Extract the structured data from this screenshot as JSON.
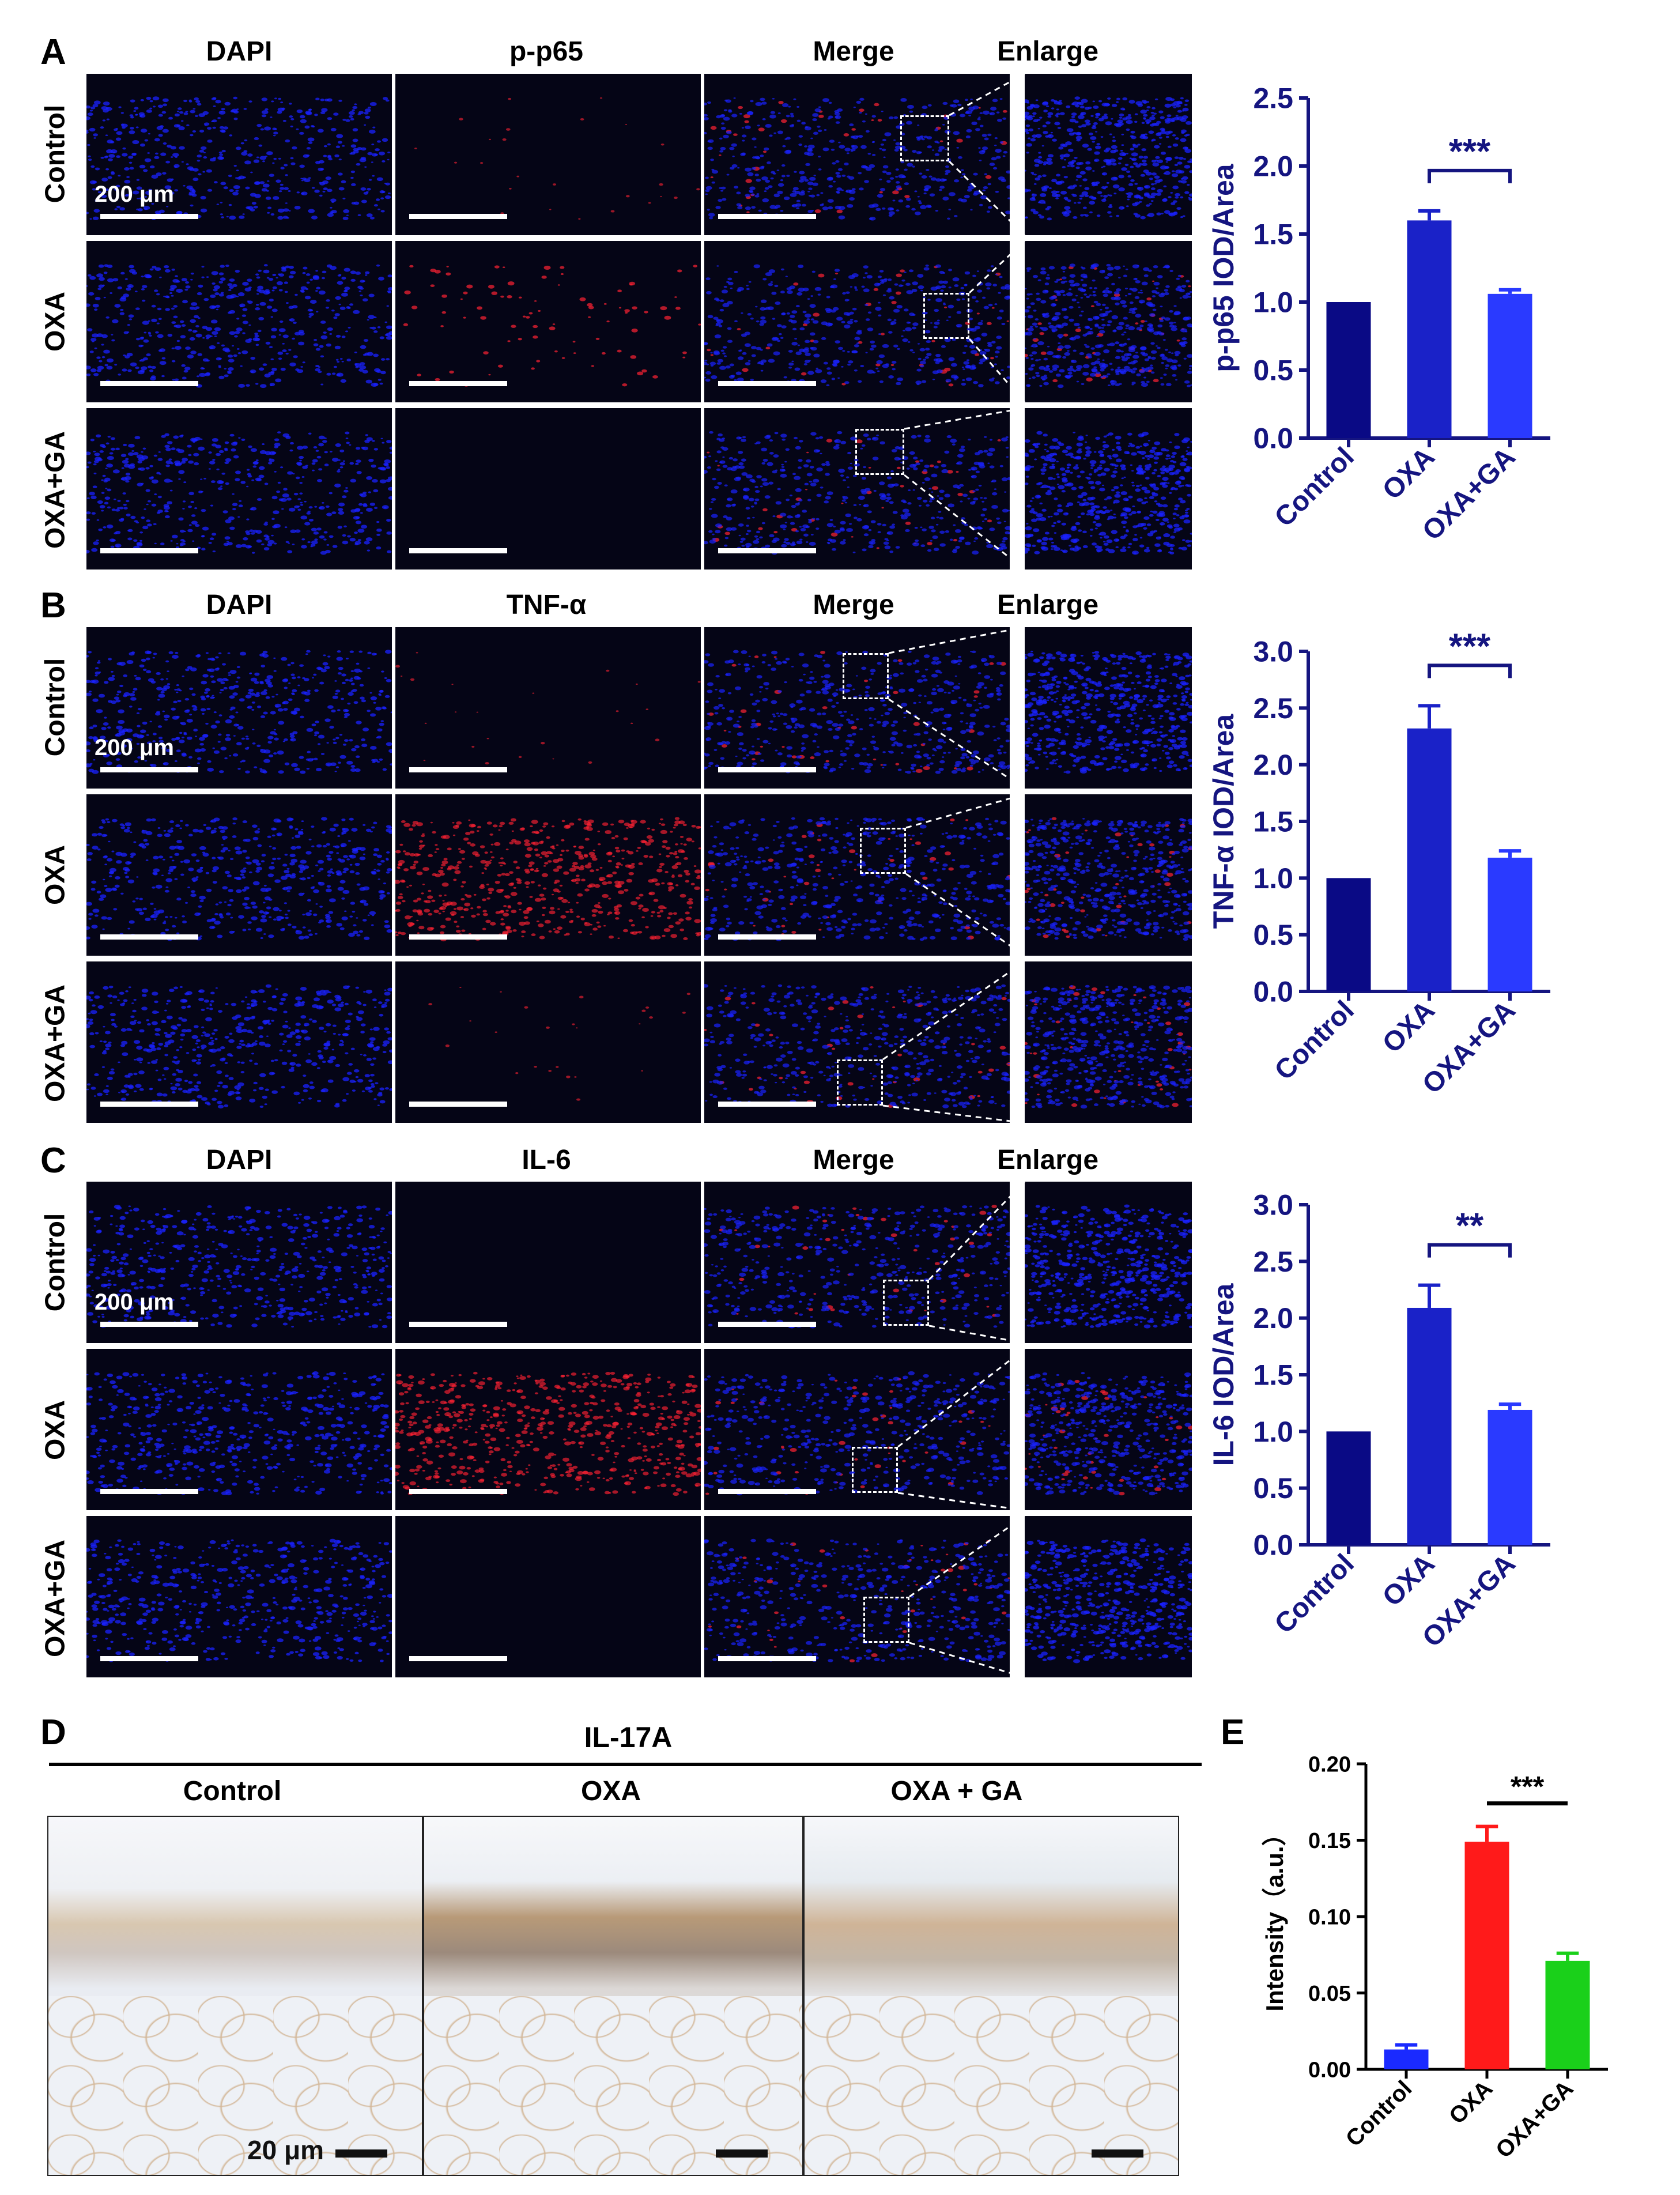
{
  "panels": {
    "A": {
      "letter": "A",
      "columns": [
        "DAPI",
        "p-p65",
        "Merge",
        "Enlarge"
      ],
      "rows": [
        "Control",
        "OXA",
        "OXA+GA"
      ],
      "scale_label": "200 μm"
    },
    "B": {
      "letter": "B",
      "columns": [
        "DAPI",
        "TNF-α",
        "Merge",
        "Enlarge"
      ],
      "rows": [
        "Control",
        "OXA",
        "OXA+GA"
      ],
      "scale_label": "200 μm"
    },
    "C": {
      "letter": "C",
      "columns": [
        "DAPI",
        "IL-6",
        "Merge",
        "Enlarge"
      ],
      "rows": [
        "Control",
        "OXA",
        "OXA+GA"
      ],
      "scale_label": "200 μm"
    },
    "D": {
      "letter": "D",
      "title": "IL-17A",
      "columns": [
        "Control",
        "OXA",
        "OXA + GA"
      ],
      "scale_label": "20 μm"
    },
    "E": {
      "letter": "E"
    }
  },
  "colors": {
    "dapi": "#1a22ff",
    "marker": "#ff2233",
    "axis_navy": "#151580",
    "bar_control": "#0a0a85",
    "bar_oxa": "#1a22c8",
    "bar_oxaga": "#2a3aff",
    "e_control": "#1a2aff",
    "e_oxa": "#ff1a1a",
    "e_oxaga": "#1ad01a"
  },
  "chart_data": [
    {
      "type": "bar",
      "panel": "A",
      "categories": [
        "Control",
        "OXA",
        "OXA+GA"
      ],
      "values": [
        1.0,
        1.6,
        1.06
      ],
      "errors": [
        0,
        0.07,
        0.03
      ],
      "ylabel": "p-p65 IOD/Area",
      "ylim": [
        0,
        2.5
      ],
      "yticks": [
        "0.0",
        "0.5",
        "1.0",
        "1.5",
        "2.0",
        "2.5"
      ],
      "significance": {
        "from": 1,
        "to": 2,
        "label": "***"
      }
    },
    {
      "type": "bar",
      "panel": "B",
      "categories": [
        "Control",
        "OXA",
        "OXA+GA"
      ],
      "values": [
        1.0,
        2.32,
        1.18
      ],
      "errors": [
        0,
        0.2,
        0.06
      ],
      "ylabel": "TNF-α IOD/Area",
      "ylim": [
        0,
        3.0
      ],
      "yticks": [
        "0.0",
        "0.5",
        "1.0",
        "1.5",
        "2.0",
        "2.5",
        "3.0"
      ],
      "significance": {
        "from": 1,
        "to": 2,
        "label": "***"
      }
    },
    {
      "type": "bar",
      "panel": "C",
      "categories": [
        "Control",
        "OXA",
        "OXA+GA"
      ],
      "values": [
        1.0,
        2.09,
        1.19
      ],
      "errors": [
        0,
        0.2,
        0.05
      ],
      "ylabel": "IL-6 IOD/Area",
      "ylim": [
        0,
        3.0
      ],
      "yticks": [
        "0.0",
        "0.5",
        "1.0",
        "1.5",
        "2.0",
        "2.5",
        "3.0"
      ],
      "significance": {
        "from": 1,
        "to": 2,
        "label": "**"
      }
    },
    {
      "type": "bar",
      "panel": "E",
      "categories": [
        "Control",
        "OXA",
        "OXA+GA"
      ],
      "values": [
        0.013,
        0.149,
        0.071
      ],
      "errors": [
        0.003,
        0.01,
        0.005
      ],
      "ylabel": "Intensity（a.u.）",
      "ylim": [
        0,
        0.2
      ],
      "yticks": [
        "0.00",
        "0.05",
        "0.10",
        "0.15",
        "0.20"
      ],
      "significance": {
        "from": 1,
        "to": 2,
        "label": "***"
      }
    }
  ]
}
